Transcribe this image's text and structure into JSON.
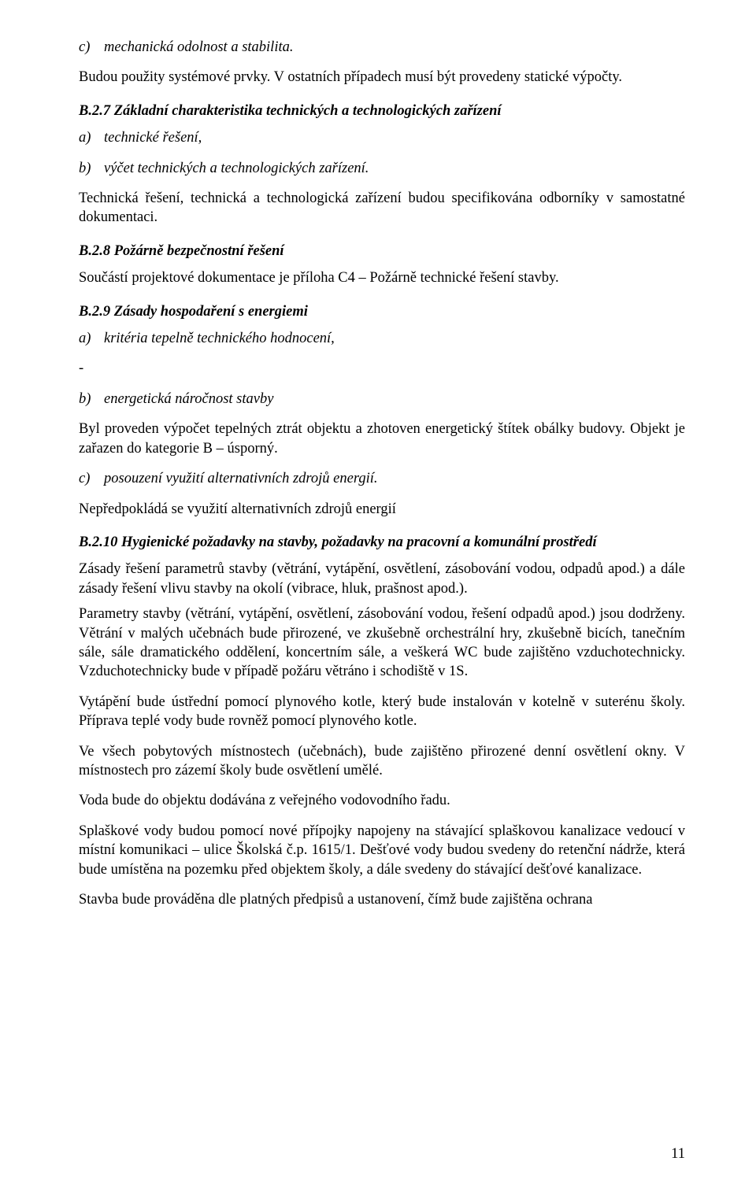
{
  "c_item": {
    "marker": "c)",
    "text": "mechanická odolnost a stabilita."
  },
  "para1": "Budou použity systémové prvky. V ostatních případech musí být provedeny statické výpočty.",
  "h_b27": "B.2.7  Základní charakteristika technických a technologických zařízení",
  "b27_a": {
    "marker": "a)",
    "text": "technické řešení,"
  },
  "b27_b": {
    "marker": "b)",
    "text": "výčet technických a technologických zařízení."
  },
  "para2": "Technická řešení, technická a technologická zařízení budou specifikována odborníky v samostatné dokumentaci.",
  "h_b28": "B.2.8  Požárně bezpečnostní řešení",
  "para3": "Součástí projektové dokumentace je příloha C4 – Požárně technické řešení stavby.",
  "h_b29": "B.2.9  Zásady hospodaření s energiemi",
  "b29_a": {
    "marker": "a)",
    "text": "kritéria tepelně technického hodnocení,"
  },
  "dash": "-",
  "b29_b": {
    "marker": "b)",
    "text": "energetická náročnost stavby"
  },
  "para4": "Byl proveden výpočet tepelných ztrát objektu a zhotoven energetický štítek obálky budovy. Objekt je zařazen do kategorie B – úsporný.",
  "b29_c": {
    "marker": "c)",
    "text": "posouzení využití alternativních zdrojů energií."
  },
  "para5": "Nepředpokládá se využití alternativních zdrojů energií",
  "h_b210": "B.2.10 Hygienické požadavky na stavby, požadavky na pracovní a komunální prostředí",
  "para6": "Zásady řešení parametrů stavby (větrání, vytápění, osvětlení, zásobování vodou, odpadů apod.) a dále zásady řešení vlivu stavby na okolí (vibrace, hluk, prašnost apod.).",
  "para7": "Parametry stavby (větrání, vytápění, osvětlení, zásobování vodou, řešení odpadů apod.) jsou dodrženy. Větrání v malých učebnách bude přirozené, ve zkušebně orchestrální hry, zkušebně bicích, tanečním sále, sále dramatického oddělení, koncertním sále, a veškerá WC bude zajištěno vzduchotechnicky. Vzduchotechnicky bude v případě požáru větráno i schodiště v 1S.",
  "para8": "Vytápění bude ústřední pomocí plynového kotle, který bude instalován v kotelně v suterénu školy. Příprava teplé vody bude rovněž pomocí plynového kotle.",
  "para9": "Ve všech pobytových místnostech (učebnách), bude zajištěno přirozené denní osvětlení okny. V místnostech pro zázemí školy bude osvětlení umělé.",
  "para10": "Voda bude do objektu dodávána z veřejného vodovodního řadu.",
  "para11": "Splaškové vody budou pomocí nové přípojky napojeny na stávající splaškovou kanalizace vedoucí v místní komunikaci – ulice Školská č.p. 1615/1. Dešťové vody budou svedeny do retenční nádrže, která bude umístěna na pozemku před objektem školy, a dále svedeny do stávající dešťové kanalizace.",
  "para12": "Stavba bude prováděna dle platných předpisů a ustanovení, čímž bude zajištěna ochrana",
  "page_number": "11"
}
